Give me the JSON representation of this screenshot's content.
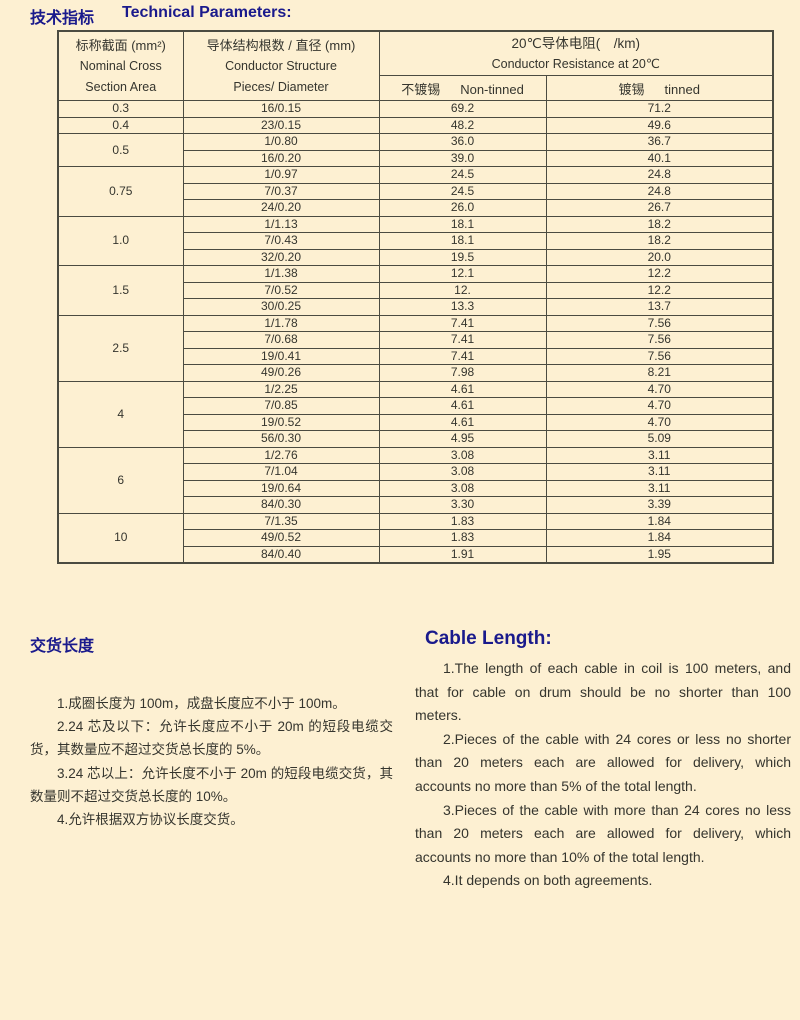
{
  "colors": {
    "background": "#fdf0d2",
    "heading_navy": "#1a1a8c",
    "body_text": "#35352e",
    "table_line": "#4b4b41"
  },
  "title": {
    "zh": "技术指标",
    "en": "Technical Parameters:"
  },
  "table": {
    "headers": {
      "col1_zh": "标称截面 (mm²)",
      "col1_en1": "Nominal Cross",
      "col1_en2": "Section Area",
      "col2_zh": "导体结构根数 / 直径 (mm)",
      "col2_en1": "Conductor Structure",
      "col2_en2": "Pieces/ Diameter",
      "res_zh": "20℃导体电阻(　/km)",
      "res_en": "Conductor Resistance at 20℃",
      "non_tinned_zh": "不镀锡",
      "non_tinned_en": "Non-tinned",
      "tinned_zh": "镀锡",
      "tinned_en": "tinned"
    },
    "groups": [
      {
        "area": "0.3",
        "rows": [
          [
            "16/0.15",
            "69.2",
            "71.2"
          ]
        ]
      },
      {
        "area": "0.4",
        "rows": [
          [
            "23/0.15",
            "48.2",
            "49.6"
          ]
        ]
      },
      {
        "area": "0.5",
        "rows": [
          [
            "1/0.80",
            "36.0",
            "36.7"
          ],
          [
            "16/0.20",
            "39.0",
            "40.1"
          ]
        ]
      },
      {
        "area": "0.75",
        "rows": [
          [
            "1/0.97",
            "24.5",
            "24.8"
          ],
          [
            "7/0.37",
            "24.5",
            "24.8"
          ],
          [
            "24/0.20",
            "26.0",
            "26.7"
          ]
        ]
      },
      {
        "area": "1.0",
        "rows": [
          [
            "1/1.13",
            "18.1",
            "18.2"
          ],
          [
            "7/0.43",
            "18.1",
            "18.2"
          ],
          [
            "32/0.20",
            "19.5",
            "20.0"
          ]
        ]
      },
      {
        "area": "1.5",
        "rows": [
          [
            "1/1.38",
            "12.1",
            "12.2"
          ],
          [
            "7/0.52",
            "12.",
            "12.2"
          ],
          [
            "30/0.25",
            "13.3",
            "13.7"
          ]
        ]
      },
      {
        "area": "2.5",
        "rows": [
          [
            "1/1.78",
            "7.41",
            "7.56"
          ],
          [
            "7/0.68",
            "7.41",
            "7.56"
          ],
          [
            "19/0.41",
            "7.41",
            "7.56"
          ],
          [
            "49/0.26",
            "7.98",
            "8.21"
          ]
        ]
      },
      {
        "area": "4",
        "rows": [
          [
            "1/2.25",
            "4.61",
            "4.70"
          ],
          [
            "7/0.85",
            "4.61",
            "4.70"
          ],
          [
            "19/0.52",
            "4.61",
            "4.70"
          ],
          [
            "56/0.30",
            "4.95",
            "5.09"
          ]
        ]
      },
      {
        "area": "6",
        "rows": [
          [
            "1/2.76",
            "3.08",
            "3.11"
          ],
          [
            "7/1.04",
            "3.08",
            "3.11"
          ],
          [
            "19/0.64",
            "3.08",
            "3.11"
          ],
          [
            "84/0.30",
            "3.30",
            "3.39"
          ]
        ]
      },
      {
        "area": "10",
        "rows": [
          [
            "7/1.35",
            "1.83",
            "1.84"
          ],
          [
            "49/0.52",
            "1.83",
            "1.84"
          ],
          [
            "84/0.40",
            "1.91",
            "1.95"
          ]
        ]
      }
    ]
  },
  "delivery_zh": {
    "heading": "交货长度",
    "paragraphs": [
      "1.成圈长度为 100m，成盘长度应不小于 100m。",
      "2.24 芯及以下：允许长度应不小于 20m 的短段电缆交货，其数量应不超过交货总长度的 5%。",
      "3.24 芯以上：允许长度不小于 20m 的短段电缆交货，其数量则不超过交货总长度的 10%。",
      "4.允许根据双方协议长度交货。"
    ]
  },
  "delivery_en": {
    "heading": "Cable Length:",
    "paragraphs": [
      "1.The length of each cable in coil is 100 meters, and that for cable on drum should be no shorter than 100 meters.",
      "2.Pieces of the cable  with 24 cores or less no shorter than 20 meters each are allowed for delivery, which accounts no more than 5% of the total length.",
      "3.Pieces of the cable with more than 24 cores no less than 20 meters each are allowed for delivery, which accounts  no more than 10% of the total length.",
      "4.It depends on both agreements."
    ]
  }
}
